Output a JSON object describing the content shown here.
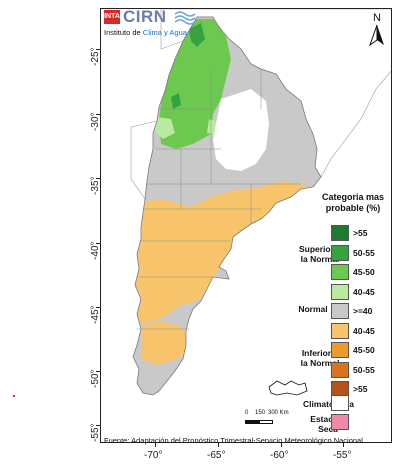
{
  "logo": {
    "badge_text": "INTA",
    "brand_text": "CIRN",
    "subtitle_prefix": "Instituto de ",
    "subtitle_highlight": "Clima y Agua"
  },
  "north_label": "N",
  "axes": {
    "y_ticks": [
      "-25°",
      "-30°",
      "-35°",
      "-40°",
      "-45°",
      "-50°",
      "-55°"
    ],
    "x_ticks": [
      "-70°",
      "-65°",
      "-60°",
      "-55°"
    ]
  },
  "legend": {
    "title_line1": "Categoria mas",
    "title_line2": "probable (%)",
    "groups": {
      "superior": [
        "Superior a",
        "la Normal"
      ],
      "normal": [
        "Normal"
      ],
      "inferior": [
        "Inferior a",
        "la Normal"
      ]
    },
    "items": [
      {
        "label": ">55",
        "color": "#1e7a2e"
      },
      {
        "label": "50-55",
        "color": "#35a33f"
      },
      {
        "label": "45-50",
        "color": "#6cc84f"
      },
      {
        "label": "40-45",
        "color": "#b8eaa0"
      },
      {
        "label": ">=40",
        "color": "#c9c9c9"
      },
      {
        "label": "40-45",
        "color": "#f8c56c"
      },
      {
        "label": "45-50",
        "color": "#ec9a2c"
      },
      {
        "label": "50-55",
        "color": "#d9731c"
      },
      {
        "label": ">55",
        "color": "#b8521a"
      }
    ],
    "climatologia_label": "Climatología",
    "climatologia_color": "#ffffff",
    "estacion_seca_line1": "Estación",
    "estacion_seca_line2": "Seca",
    "estacion_seca_color": "#f28aa6"
  },
  "scale_bar": {
    "labels": [
      "0",
      "150",
      "300 Km"
    ]
  },
  "source": "Fuente: Adaptación del Pronóstico Trimestral-Servicio Meteorológico Nacional.",
  "colors": {
    "normal": "#c9c9c9",
    "inferior_40_45": "#f8c56c",
    "superior_45_50": "#6cc84f",
    "superior_50_55": "#35a33f",
    "superior_40_45": "#b8eaa0",
    "climatologia": "#ffffff",
    "estacion_seca": "#f28aa6",
    "ocean": "#ffffff",
    "border": "#7a7a7a"
  }
}
